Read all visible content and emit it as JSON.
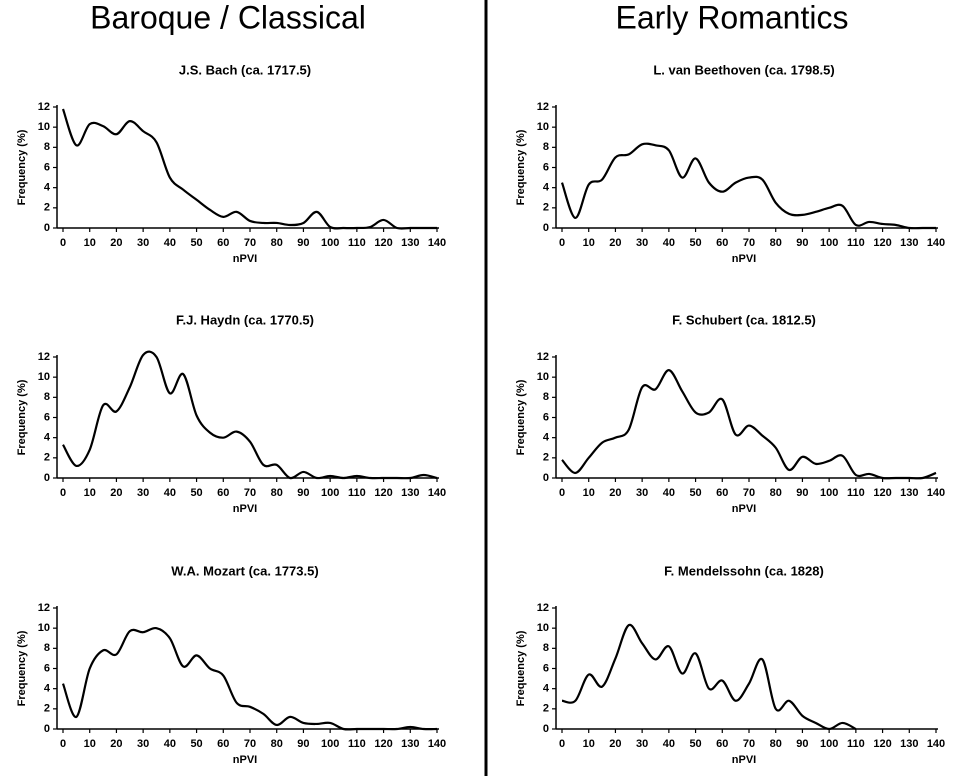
{
  "headers": [
    "Baroque / Classical",
    "Early Romantics"
  ],
  "chart_data": [
    {
      "type": "line",
      "title": "J.S. Bach (ca. 1717.5)",
      "xlabel": "nPVI",
      "ylabel": "Frequency (%)",
      "color": "#000000",
      "x": [
        0,
        5,
        10,
        15,
        20,
        25,
        30,
        35,
        40,
        45,
        50,
        55,
        60,
        65,
        70,
        75,
        80,
        85,
        90,
        95,
        100,
        105,
        110,
        115,
        120,
        125,
        130,
        135,
        140
      ],
      "values": [
        11.8,
        8.2,
        10.3,
        10.1,
        9.3,
        10.6,
        9.6,
        8.5,
        5,
        3.8,
        2.8,
        1.8,
        1.1,
        1.6,
        0.7,
        0.5,
        0.5,
        0.3,
        0.5,
        1.6,
        0.1,
        0,
        0,
        0.1,
        0.8,
        0,
        0,
        0,
        0
      ],
      "xlim": [
        0,
        140
      ],
      "xticks": [
        0,
        10,
        20,
        30,
        40,
        50,
        60,
        70,
        80,
        90,
        100,
        110,
        120,
        130,
        140
      ],
      "ylim": [
        0,
        12
      ],
      "yticks": [
        0,
        2,
        4,
        6,
        8,
        10,
        12
      ]
    },
    {
      "type": "line",
      "title": "F.J. Haydn (ca. 1770.5)",
      "xlabel": "nPVI",
      "ylabel": "Frequency (%)",
      "color": "#000000",
      "x": [
        0,
        5,
        10,
        15,
        20,
        25,
        30,
        35,
        40,
        45,
        50,
        55,
        60,
        65,
        70,
        75,
        80,
        85,
        90,
        95,
        100,
        105,
        110,
        115,
        120,
        125,
        130,
        135,
        140
      ],
      "values": [
        3.3,
        1.2,
        2.8,
        7.2,
        6.6,
        9,
        12.2,
        12,
        8.4,
        10.3,
        6.2,
        4.5,
        4,
        4.6,
        3.6,
        1.3,
        1.3,
        0,
        0.6,
        0,
        0.2,
        0,
        0.2,
        0,
        0,
        0,
        0,
        0.3,
        0
      ],
      "xlim": [
        0,
        140
      ],
      "xticks": [
        0,
        10,
        20,
        30,
        40,
        50,
        60,
        70,
        80,
        90,
        100,
        110,
        120,
        130,
        140
      ],
      "ylim": [
        0,
        12
      ],
      "yticks": [
        0,
        2,
        4,
        6,
        8,
        10,
        12
      ]
    },
    {
      "type": "line",
      "title": "W.A. Mozart (ca. 1773.5)",
      "xlabel": "nPVI",
      "ylabel": "Frequency (%)",
      "color": "#000000",
      "x": [
        0,
        5,
        10,
        15,
        20,
        25,
        30,
        35,
        40,
        45,
        50,
        55,
        60,
        65,
        70,
        75,
        80,
        85,
        90,
        95,
        100,
        105,
        110,
        115,
        120,
        125,
        130,
        135,
        140
      ],
      "values": [
        4.5,
        1.2,
        6,
        7.8,
        7.4,
        9.7,
        9.6,
        10,
        9,
        6.2,
        7.3,
        6,
        5.3,
        2.6,
        2.2,
        1.5,
        0.4,
        1.2,
        0.6,
        0.5,
        0.6,
        0,
        0,
        0,
        0,
        0,
        0.2,
        0,
        0
      ],
      "xlim": [
        0,
        140
      ],
      "xticks": [
        0,
        10,
        20,
        30,
        40,
        50,
        60,
        70,
        80,
        90,
        100,
        110,
        120,
        130,
        140
      ],
      "ylim": [
        0,
        12
      ],
      "yticks": [
        0,
        2,
        4,
        6,
        8,
        10,
        12
      ]
    },
    {
      "type": "line",
      "title": "L. van Beethoven (ca. 1798.5)",
      "xlabel": "nPVI",
      "ylabel": "Frequency (%)",
      "color": "#000000",
      "x": [
        0,
        5,
        10,
        15,
        20,
        25,
        30,
        35,
        40,
        45,
        50,
        55,
        60,
        65,
        70,
        75,
        80,
        85,
        90,
        95,
        100,
        105,
        110,
        115,
        120,
        125,
        130,
        135,
        140
      ],
      "values": [
        4.5,
        1,
        4.3,
        4.8,
        7,
        7.3,
        8.3,
        8.2,
        7.7,
        5,
        6.9,
        4.5,
        3.6,
        4.5,
        5,
        4.8,
        2.5,
        1.4,
        1.3,
        1.6,
        2,
        2.2,
        0.3,
        0.6,
        0.4,
        0.3,
        0,
        0,
        0
      ],
      "xlim": [
        0,
        140
      ],
      "xticks": [
        0,
        10,
        20,
        30,
        40,
        50,
        60,
        70,
        80,
        90,
        100,
        110,
        120,
        130,
        140
      ],
      "ylim": [
        0,
        12
      ],
      "yticks": [
        0,
        2,
        4,
        6,
        8,
        10,
        12
      ]
    },
    {
      "type": "line",
      "title": "F. Schubert (ca. 1812.5)",
      "xlabel": "nPVI",
      "ylabel": "Frequency (%)",
      "color": "#000000",
      "x": [
        0,
        5,
        10,
        15,
        20,
        25,
        30,
        35,
        40,
        45,
        50,
        55,
        60,
        65,
        70,
        75,
        80,
        85,
        90,
        95,
        100,
        105,
        110,
        115,
        120,
        125,
        130,
        135,
        140
      ],
      "values": [
        1.8,
        0.5,
        2,
        3.5,
        4,
        4.8,
        9,
        8.8,
        10.7,
        8.6,
        6.5,
        6.5,
        7.8,
        4.3,
        5.2,
        4.2,
        3,
        0.8,
        2.1,
        1.4,
        1.7,
        2.2,
        0.3,
        0.4,
        0,
        0,
        0,
        0,
        0.5
      ],
      "xlim": [
        0,
        140
      ],
      "xticks": [
        0,
        10,
        20,
        30,
        40,
        50,
        60,
        70,
        80,
        90,
        100,
        110,
        120,
        130,
        140
      ],
      "ylim": [
        0,
        12
      ],
      "yticks": [
        0,
        2,
        4,
        6,
        8,
        10,
        12
      ]
    },
    {
      "type": "line",
      "title": "F. Mendelssohn (ca. 1828)",
      "xlabel": "nPVI",
      "ylabel": "Frequency (%)",
      "color": "#000000",
      "x": [
        0,
        5,
        10,
        15,
        20,
        25,
        30,
        35,
        40,
        45,
        50,
        55,
        60,
        65,
        70,
        75,
        80,
        85,
        90,
        95,
        100,
        105,
        110
      ],
      "values": [
        2.8,
        2.8,
        5.4,
        4.2,
        7,
        10.3,
        8.5,
        6.9,
        8.2,
        5.5,
        7.5,
        4,
        4.8,
        2.8,
        4.5,
        6.9,
        2,
        2.8,
        1.3,
        0.6,
        0,
        0.6,
        0
      ],
      "xlim": [
        0,
        140
      ],
      "xticks": [
        0,
        10,
        20,
        30,
        40,
        50,
        60,
        70,
        80,
        90,
        100,
        110,
        120,
        130,
        140
      ],
      "ylim": [
        0,
        12
      ],
      "yticks": [
        0,
        2,
        4,
        6,
        8,
        10,
        12
      ]
    }
  ]
}
